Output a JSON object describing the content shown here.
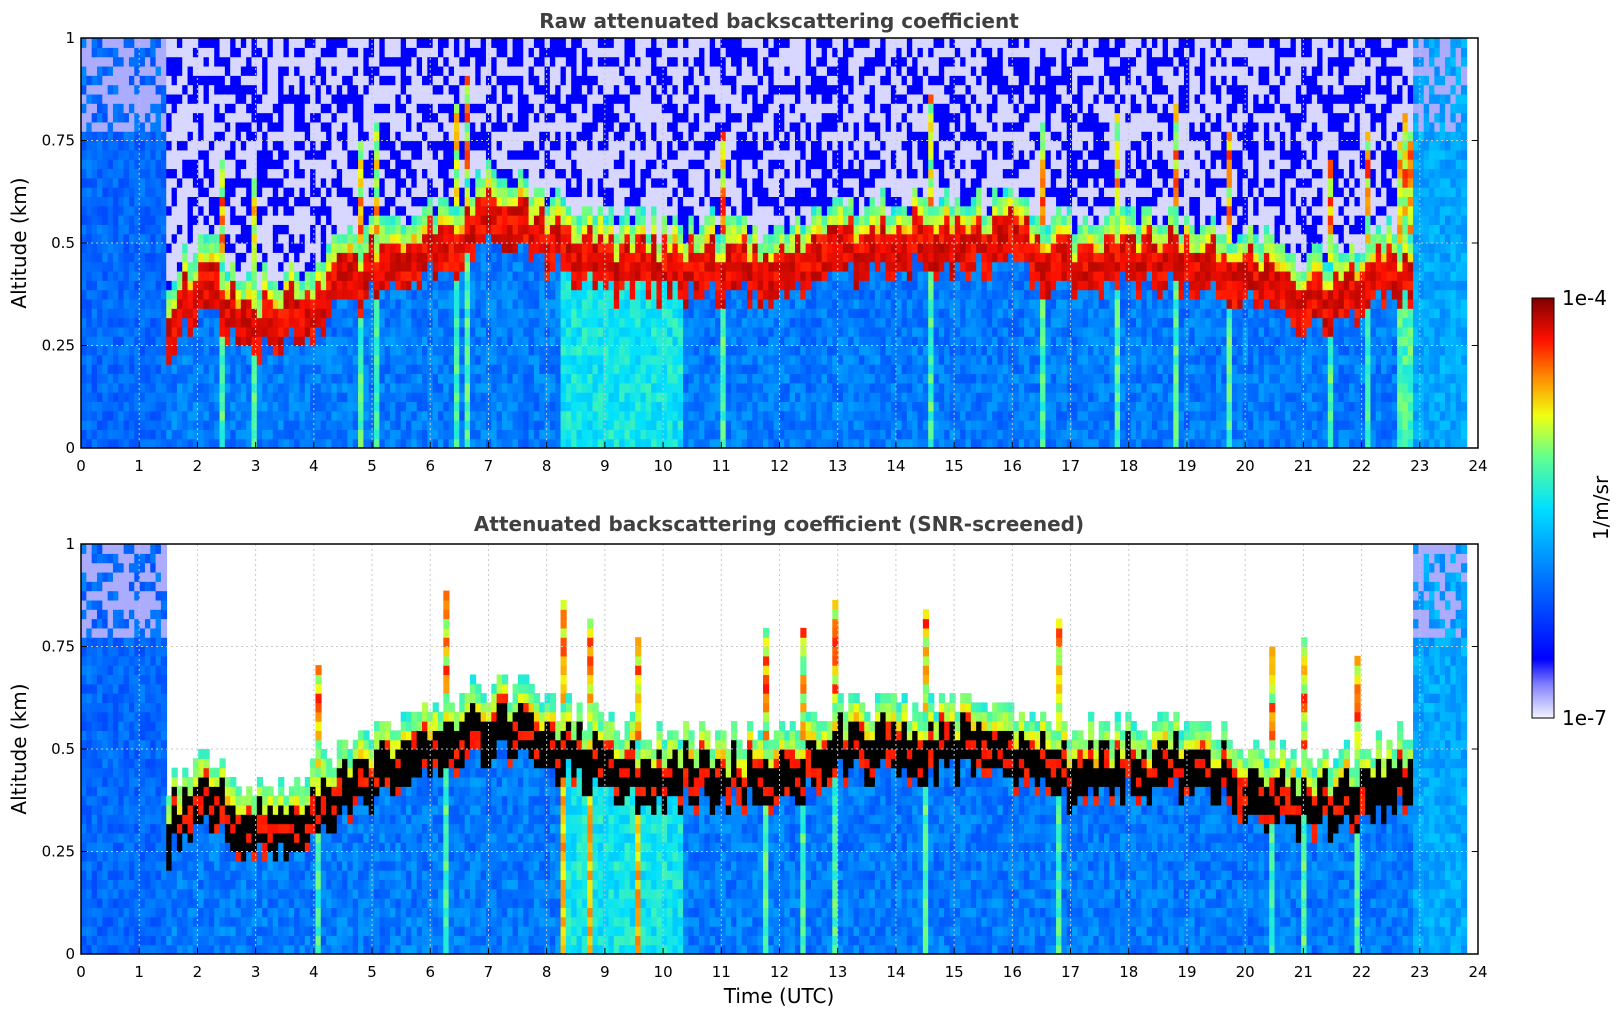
{
  "chart_data": [
    {
      "type": "heatmap",
      "title": "Raw attenuated backscattering coefficient",
      "xlabel": "",
      "ylabel": "Altitude (km)",
      "xlim": [
        0,
        24
      ],
      "ylim": [
        0,
        1
      ],
      "x_ticks": [
        "0",
        "1",
        "2",
        "3",
        "4",
        "5",
        "6",
        "7",
        "8",
        "9",
        "10",
        "11",
        "12",
        "13",
        "14",
        "15",
        "16",
        "17",
        "18",
        "19",
        "20",
        "21",
        "22",
        "23",
        "24"
      ],
      "y_ticks": [
        "0",
        "0.25",
        "0.5",
        "0.75",
        "1"
      ],
      "grid": true,
      "screened": false,
      "boundary_layer_top_km": {
        "time_utc": [
          1.4,
          2,
          3,
          4,
          5,
          6,
          7,
          8,
          9,
          10,
          11,
          12,
          13,
          14,
          15,
          16,
          17,
          18,
          19,
          20,
          21,
          22,
          22.8
        ],
        "altitude_km": [
          0.3,
          0.4,
          0.3,
          0.36,
          0.44,
          0.5,
          0.56,
          0.52,
          0.46,
          0.44,
          0.44,
          0.44,
          0.5,
          0.5,
          0.52,
          0.5,
          0.44,
          0.46,
          0.46,
          0.42,
          0.36,
          0.4,
          0.44
        ]
      }
    },
    {
      "type": "heatmap",
      "title": "Attenuated backscattering coefficient (SNR-screened)",
      "xlabel": "Time (UTC)",
      "ylabel": "Altitude (km)",
      "xlim": [
        0,
        24
      ],
      "ylim": [
        0,
        1
      ],
      "x_ticks": [
        "0",
        "1",
        "2",
        "3",
        "4",
        "5",
        "6",
        "7",
        "8",
        "9",
        "10",
        "11",
        "12",
        "13",
        "14",
        "15",
        "16",
        "17",
        "18",
        "19",
        "20",
        "21",
        "22",
        "23",
        "24"
      ],
      "y_ticks": [
        "0",
        "0.25",
        "0.5",
        "0.75",
        "1"
      ],
      "grid": true,
      "screened": true
    }
  ],
  "colorbar": {
    "label": "1/m/sr",
    "max_label": "1e-4",
    "min_label": "1e-7",
    "colormap": "jet"
  },
  "colors": {
    "low": "#1030f0",
    "mid": "#20d0e0",
    "high": "#f0f020",
    "peak": "#8b0000",
    "screened_core": "#000000"
  }
}
